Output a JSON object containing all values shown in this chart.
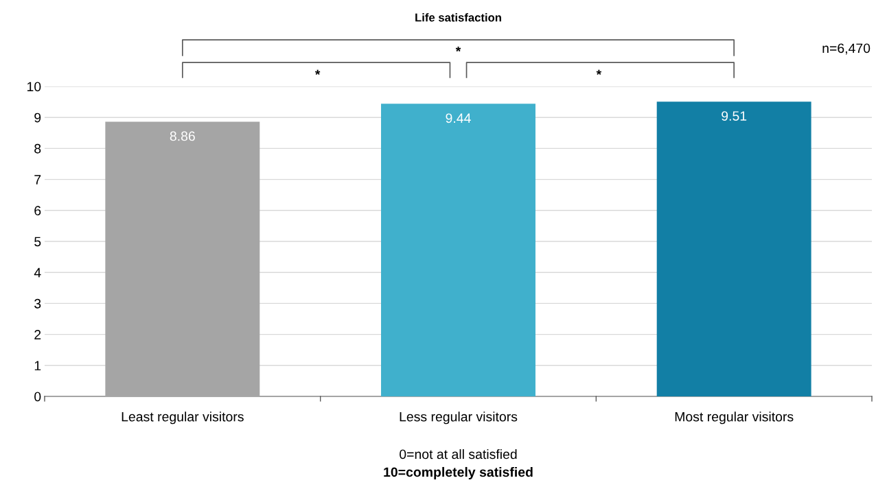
{
  "chart_data": {
    "type": "bar",
    "title": "Life satisfaction",
    "categories": [
      "Least regular visitors",
      "Less regular visitors",
      "Most regular visitors"
    ],
    "values": [
      8.86,
      9.44,
      9.51
    ],
    "colors": [
      "#a5a5a5",
      "#40b0cc",
      "#127fa5"
    ],
    "ylim": [
      0,
      10
    ],
    "yticks": [
      0,
      1,
      2,
      3,
      4,
      5,
      6,
      7,
      8,
      9,
      10
    ],
    "grid": "y",
    "data_labels": true,
    "annotations": [
      "*",
      "*",
      "*",
      "n=6,470",
      "0=not at all satisfied",
      "10=completely satisfied"
    ]
  }
}
